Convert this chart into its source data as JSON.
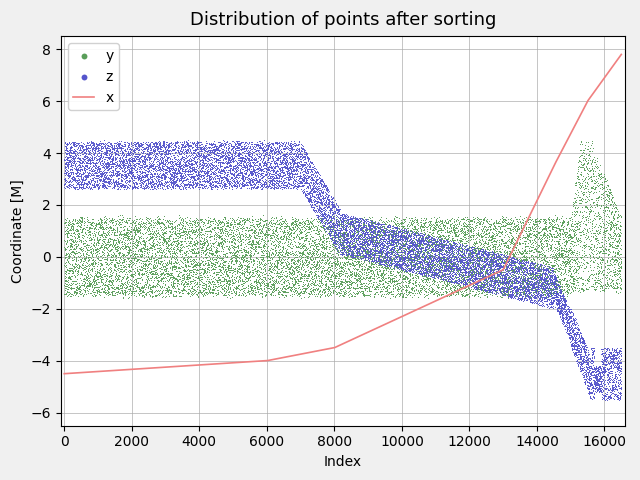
{
  "title": "Distribution of points after sorting",
  "xlabel": "Index",
  "ylabel": "Coordinate [M]",
  "n_points": 16500,
  "ylim": [
    -6.5,
    8.5
  ],
  "xlim": [
    -100,
    16600
  ],
  "xticks": [
    0,
    2000,
    4000,
    6000,
    8000,
    10000,
    12000,
    14000,
    16000
  ],
  "yticks": [
    -6,
    -4,
    -2,
    0,
    2,
    4,
    6,
    8
  ],
  "color_x": "#f08080",
  "color_y": "#5a9e5a",
  "color_z": "#5555cc",
  "legend_labels": [
    "x",
    "y",
    "z"
  ],
  "figsize": [
    6.4,
    4.8
  ],
  "dpi": 100,
  "bg_color": "#f0f0f0"
}
